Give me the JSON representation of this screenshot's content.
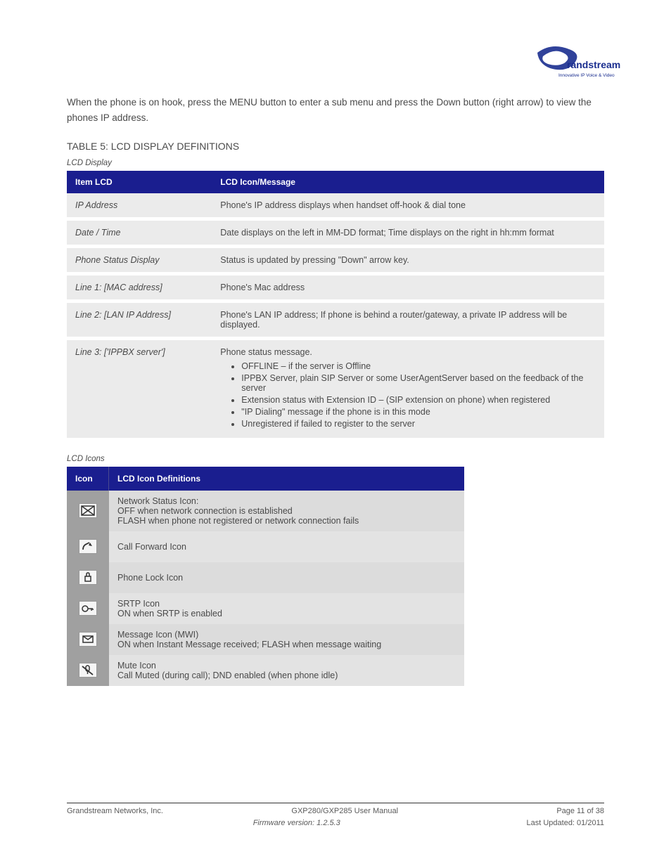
{
  "colors": {
    "header_bg": "#1a1e8f",
    "header_text": "#ffffff",
    "row_bg": "#ebebeb",
    "row_spacer": "#ffffff",
    "icon_cell_bg": "#a0a0a0",
    "desc_cell_bg": "#dcdcdc",
    "text_color": "#4a4a4a",
    "footer_rule": "#333333",
    "logo_blue": "#1a2e8f"
  },
  "typography": {
    "body_fontsize_pt": 10,
    "heading_fontsize_pt": 11,
    "subtitle_fontsize_pt": 9,
    "footer_fontsize_pt": 8.5,
    "font_family": "Arial"
  },
  "logo": {
    "brand": "Grandstream",
    "tagline": "Innovative IP Voice & Video"
  },
  "intro": {
    "text": "When the phone is on hook, press the MENU button to enter a sub menu and press the Down button (right arrow) to view the phones IP address."
  },
  "table1": {
    "type": "table",
    "caption": "TABLE 5: LCD DISPLAY DEFINITIONS",
    "subtitle": "LCD Display",
    "columns": [
      "Item LCD",
      "LCD Icon/Message"
    ],
    "column_widths": [
      "27%",
      "73%"
    ],
    "rows": [
      {
        "label": "IP Address",
        "text": "Phone's IP address displays when handset off-hook & dial tone"
      },
      {
        "label": "Date / Time",
        "text": "Date displays on the left in MM-DD format; Time displays on the right in hh:mm format"
      },
      {
        "label": "Phone Status Display",
        "text": "Status is updated by pressing \"Down\" arrow key."
      },
      {
        "label": "Line 1: [MAC address]",
        "text": "Phone's Mac address"
      },
      {
        "label": "Line 2: [LAN IP Address]",
        "text": "Phone's LAN IP address; If phone is behind a router/gateway, a private IP address will be displayed."
      },
      {
        "label": "Line 3: ['IPPBX server']",
        "text": "Phone status message.",
        "bullets": [
          "OFFLINE – if the server is Offline",
          "IPPBX Server, plain SIP Server or some UserAgentServer based on the feedback of the server",
          "Extension status with Extension ID – (SIP extension on phone) when registered",
          "\"IP Dialing\" message if the phone is in this mode",
          "Unregistered if failed to register to the server"
        ]
      }
    ]
  },
  "table2": {
    "type": "table",
    "subtitle": "LCD Icons",
    "columns": [
      "Icon",
      "LCD Icon Definitions"
    ],
    "column_widths": [
      "60px",
      "auto"
    ],
    "table_width": "74%",
    "rows": [
      {
        "icon": "network-status-icon",
        "desc": "Network Status Icon:\nOFF when network connection is established\nFLASH when phone not registered or network connection fails"
      },
      {
        "icon": "call-forward-icon",
        "desc": "Call Forward Icon"
      },
      {
        "icon": "phone-lock-icon",
        "desc": "Phone Lock Icon"
      },
      {
        "icon": "srtp-icon",
        "desc": "SRTP Icon\nON when SRTP is enabled"
      },
      {
        "icon": "message-icon",
        "desc": "Message Icon (MWI)\nON when Instant Message received; FLASH when message waiting"
      },
      {
        "icon": "mute-icon",
        "desc": "Mute Icon\nCall Muted (during call); DND enabled (when phone idle)"
      }
    ]
  },
  "footer": {
    "left_line1": "Grandstream Networks, Inc.",
    "left_line2": "",
    "center_line1": "GXP280/GXP285 User Manual",
    "center_line2": "Firmware version: 1.2.5.3",
    "right_line1": "Page 11 of 38",
    "right_line2": "Last Updated: 01/2011"
  }
}
